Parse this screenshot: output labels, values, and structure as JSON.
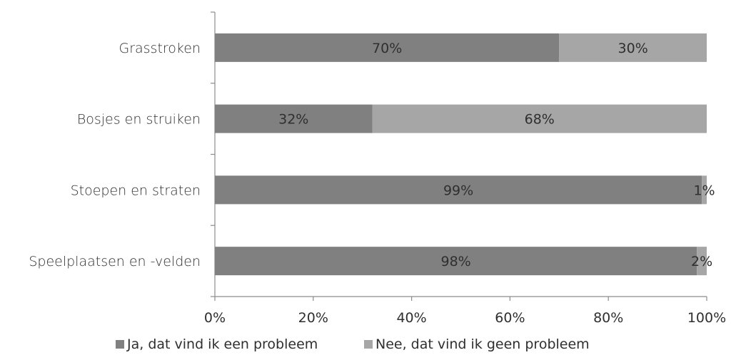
{
  "chart_data": {
    "type": "bar",
    "orientation": "horizontal",
    "stacked": true,
    "categories": [
      "Grasstroken",
      "Bosjes en struiken",
      "Stoepen en straten",
      "Speelplaatsen en -velden"
    ],
    "series": [
      {
        "name": "Ja, dat vind ik een probleem",
        "color": "#808080",
        "values": [
          70,
          32,
          99,
          98
        ],
        "labels": [
          "70%",
          "32%",
          "99%",
          "98%"
        ]
      },
      {
        "name": "Nee, dat vind ik geen probleem",
        "color": "#a6a6a6",
        "values": [
          30,
          68,
          1,
          2
        ],
        "labels": [
          "30%",
          "68%",
          "1%",
          "2%"
        ]
      }
    ],
    "xlim": [
      0,
      100
    ],
    "xticks": [
      0,
      20,
      40,
      60,
      80,
      100
    ],
    "xtick_labels": [
      "0%",
      "20%",
      "40%",
      "60%",
      "80%",
      "100%"
    ],
    "grid": false,
    "legend_position": "bottom"
  }
}
